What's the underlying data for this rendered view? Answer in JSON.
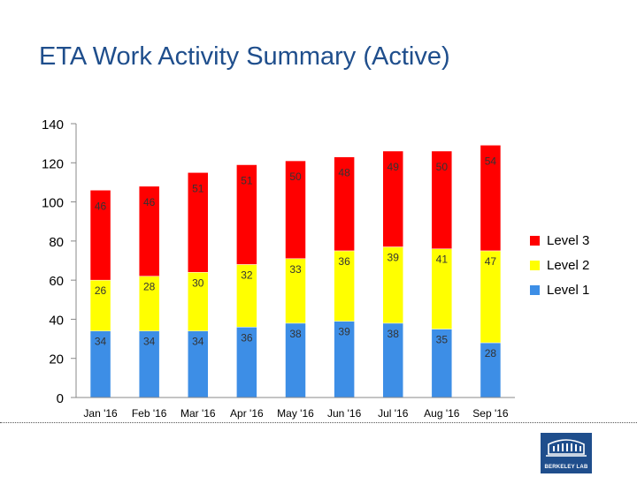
{
  "slide": {
    "title": "ETA Work Activity Summary (Active)"
  },
  "chart_data": {
    "type": "bar",
    "stacked": true,
    "categories": [
      "Jan '16",
      "Feb '16",
      "Mar '16",
      "Apr '16",
      "May '16",
      "Jun '16",
      "Jul '16",
      "Aug '16",
      "Sep '16"
    ],
    "series": [
      {
        "name": "Level 1",
        "color": "#3d8ee6",
        "values": [
          34,
          34,
          34,
          36,
          38,
          39,
          38,
          35,
          28
        ]
      },
      {
        "name": "Level 2",
        "color": "#ffff00",
        "values": [
          26,
          28,
          30,
          32,
          33,
          36,
          39,
          41,
          47
        ]
      },
      {
        "name": "Level 3",
        "color": "#ff0000",
        "values": [
          46,
          46,
          51,
          51,
          50,
          48,
          49,
          50,
          54
        ]
      }
    ],
    "ylim": [
      0,
      140
    ],
    "yticks": [
      "0",
      "20",
      "40",
      "60",
      "80",
      "100",
      "120",
      "140"
    ],
    "grid": false,
    "legend_position": "right"
  },
  "logo": {
    "text": "BERKELEY LAB",
    "color": "#1f4e8c"
  }
}
